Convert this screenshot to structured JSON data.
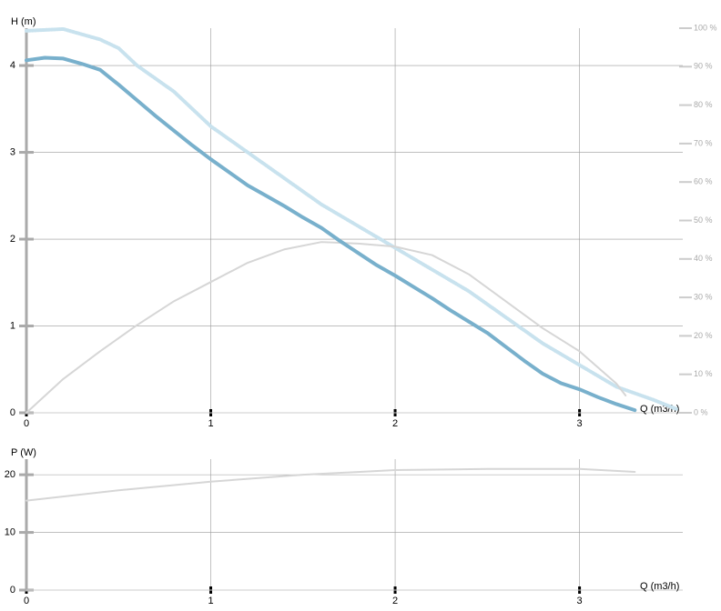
{
  "chart_data": [
    {
      "type": "line",
      "ylabel": "H (m)",
      "xlabel": "Q (m3/h)",
      "xlim": [
        0,
        3.56
      ],
      "xticks": [
        0,
        1,
        2,
        3
      ],
      "ylim": [
        0,
        4.43
      ],
      "yticks": [
        0,
        1,
        2,
        3,
        4
      ],
      "y2lim": [
        0,
        100
      ],
      "y2ticks": [
        {
          "value": 0,
          "label": "0 %"
        },
        {
          "value": 10,
          "label": "10 %"
        },
        {
          "value": 20,
          "label": "20 %"
        },
        {
          "value": 30,
          "label": "30 %"
        },
        {
          "value": 40,
          "label": "40 %"
        },
        {
          "value": 50,
          "label": "50 %"
        },
        {
          "value": 60,
          "label": "60 %"
        },
        {
          "value": 70,
          "label": "70 %"
        },
        {
          "value": 80,
          "label": "80 %"
        },
        {
          "value": 90,
          "label": "90 %"
        },
        {
          "value": 100,
          "label": "100 %"
        }
      ],
      "grid": true,
      "series": [
        {
          "color": "#c8e2ee",
          "style": "dotted",
          "x": [
            0,
            0.2,
            0.4,
            0.5,
            0.6,
            0.8,
            1.0,
            1.2,
            1.4,
            1.6,
            1.8,
            2.0,
            2.2,
            2.4,
            2.6,
            2.8,
            3.0,
            3.2,
            3.4,
            3.53
          ],
          "values": [
            4.4,
            4.42,
            4.3,
            4.2,
            4.0,
            3.7,
            3.3,
            3.0,
            2.7,
            2.4,
            2.15,
            1.9,
            1.65,
            1.4,
            1.1,
            0.8,
            0.55,
            0.3,
            0.15,
            0.04
          ]
        },
        {
          "color": "#d6d6d6",
          "style": "solid",
          "axis": "y2",
          "x": [
            0,
            0.2,
            0.4,
            0.6,
            0.8,
            1.0,
            1.2,
            1.4,
            1.6,
            1.8,
            2.0,
            2.2,
            2.4,
            2.6,
            2.8,
            3.0,
            3.2,
            3.25
          ],
          "values": [
            0,
            8.8,
            16,
            22.8,
            29,
            34,
            39,
            42.5,
            44.4,
            44,
            43.2,
            41,
            36,
            29,
            22,
            16,
            7.6,
            4.5
          ]
        },
        {
          "color": "#78b0cc",
          "style": "thick",
          "x": [
            0,
            0.1,
            0.2,
            0.3,
            0.4,
            0.5,
            0.6,
            0.7,
            0.8,
            0.9,
            1.0,
            1.1,
            1.2,
            1.3,
            1.4,
            1.5,
            1.6,
            1.7,
            1.8,
            1.9,
            2.0,
            2.1,
            2.2,
            2.3,
            2.4,
            2.5,
            2.6,
            2.7,
            2.8,
            2.9,
            3.0,
            3.1,
            3.2,
            3.3
          ],
          "values": [
            4.06,
            4.09,
            4.08,
            4.02,
            3.95,
            3.78,
            3.6,
            3.42,
            3.25,
            3.08,
            2.92,
            2.77,
            2.62,
            2.5,
            2.38,
            2.25,
            2.13,
            1.98,
            1.84,
            1.7,
            1.58,
            1.45,
            1.32,
            1.18,
            1.05,
            0.92,
            0.76,
            0.6,
            0.45,
            0.34,
            0.27,
            0.18,
            0.1,
            0.03
          ]
        }
      ]
    },
    {
      "type": "line",
      "ylabel": "P (W)",
      "xlabel": "Q (m3/h)",
      "xlim": [
        0,
        3.56
      ],
      "xticks": [
        0,
        1,
        2,
        3
      ],
      "ylim": [
        0,
        22.7
      ],
      "yticks": [
        0,
        10,
        20
      ],
      "grid": true,
      "series": [
        {
          "color": "#d6d6d6",
          "style": "solid",
          "x": [
            0,
            0.5,
            1.0,
            1.5,
            2.0,
            2.5,
            3.0,
            3.3
          ],
          "values": [
            15.5,
            17.3,
            18.8,
            20,
            20.8,
            21,
            21,
            20.5
          ]
        }
      ]
    }
  ]
}
